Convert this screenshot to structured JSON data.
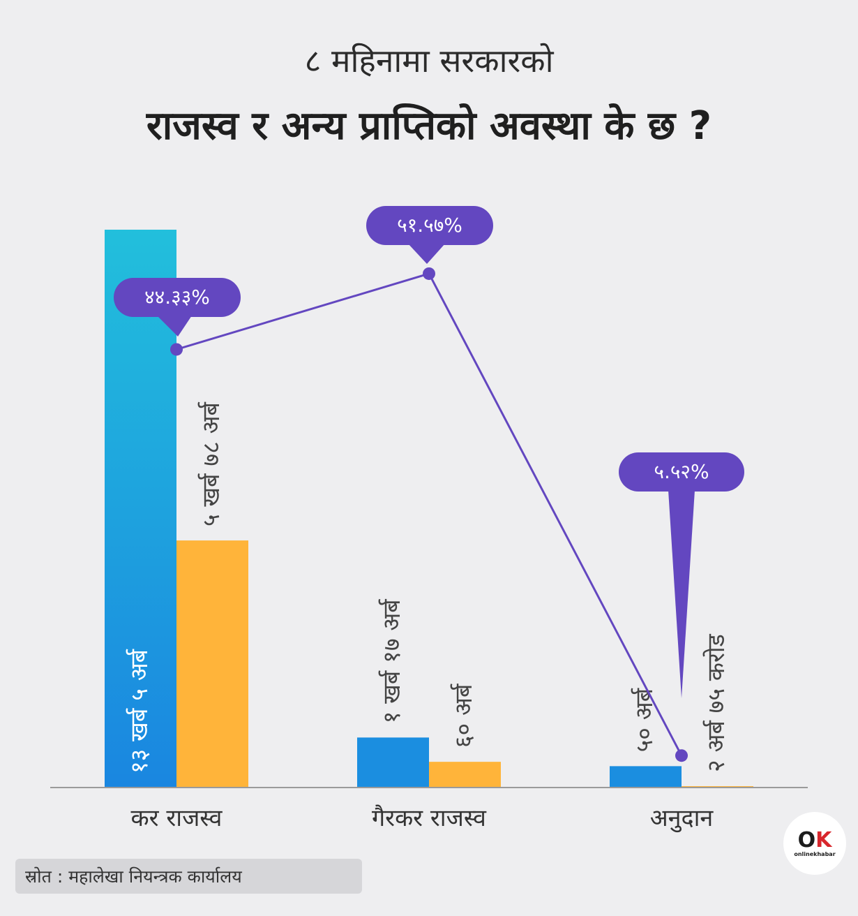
{
  "header": {
    "title_line1": "८ महिनामा सरकारको",
    "title_line2": "राजस्व र अन्य प्राप्तिको अवस्था के छ ?"
  },
  "chart_data": {
    "type": "bar",
    "title": "८ महिनामा सरकारको राजस्व र अन्य प्राप्तिको अवस्था के छ ?",
    "categories": [
      "कर राजस्व",
      "गैरकर राजस्व",
      "अनुदान"
    ],
    "series": [
      {
        "color": "#1f8fe0",
        "values": [
          1305,
          117,
          50
        ],
        "labels": [
          "१३ खर्ब ५ अर्ब",
          "१ खर्ब १७ अर्ब",
          "५० अर्ब"
        ]
      },
      {
        "color": "#ffb43a",
        "values": [
          578,
          60.17,
          2.75
        ],
        "labels": [
          "५ खर्ब ७८ अर्ब",
          "६० अर्ब",
          "२ अर्ब ७५ करोड"
        ]
      }
    ],
    "line": {
      "color": "#6347c0",
      "values": [
        44.33,
        51.57,
        5.52
      ],
      "labels": [
        "४४.३३%",
        "५१.५७%",
        "५.५२%"
      ]
    },
    "legend": "none",
    "grid": false
  },
  "source": "स्रोत : महालेखा नियन्त्रक कार्यालय",
  "logo": {
    "text": "onlinekhabar",
    "mark_o": "O",
    "mark_k": "K"
  }
}
